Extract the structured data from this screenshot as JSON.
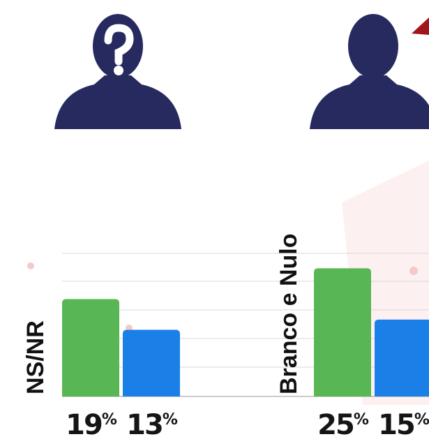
{
  "chart_data": {
    "type": "bar",
    "categories": [
      "NS/NR",
      "Branco e Nulo"
    ],
    "series": [
      {
        "color": "#58b655",
        "values": [
          19,
          25
        ],
        "value_labels": [
          "19%",
          "25%"
        ]
      },
      {
        "color": "#1a80e8",
        "values": [
          13,
          15
        ],
        "value_labels": [
          "13%",
          "15%"
        ]
      }
    ],
    "ylim": [
      0,
      29
    ]
  }
}
